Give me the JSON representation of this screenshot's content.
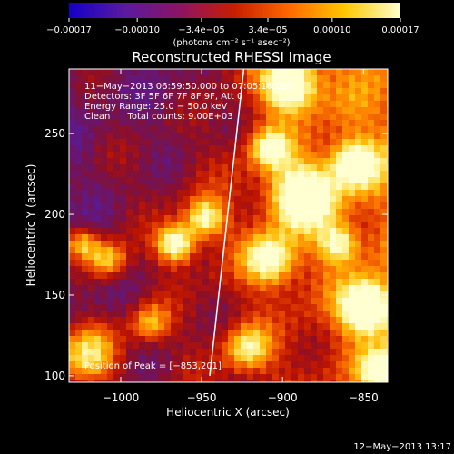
{
  "chart_data": {
    "type": "heatmap",
    "title": "Reconstructed RHESSI Image",
    "xlabel": "Heliocentric X (arcsec)",
    "ylabel": "Heliocentric Y (arcsec)",
    "xlim": [
      -1032,
      -835
    ],
    "ylim": [
      96,
      290
    ],
    "x_ticks": [
      {
        "value": -1000,
        "label": "−1000"
      },
      {
        "value": -950,
        "label": "−950"
      },
      {
        "value": -900,
        "label": "−900"
      },
      {
        "value": -850,
        "label": "−850"
      }
    ],
    "y_ticks": [
      {
        "value": 100,
        "label": "100"
      },
      {
        "value": 150,
        "label": "150"
      },
      {
        "value": 200,
        "label": "200"
      },
      {
        "value": 250,
        "label": "250"
      }
    ],
    "colorbar": {
      "range": [
        -0.00017,
        0.00017
      ],
      "ticks": [
        {
          "value": -0.00017,
          "label": "−0.00017"
        },
        {
          "value": -0.0001,
          "label": "−0.00010"
        },
        {
          "value": -3.4e-05,
          "label": "−3.4e−05"
        },
        {
          "value": 3.4e-05,
          "label": "3.4e−05"
        },
        {
          "value": 0.0001,
          "label": "0.00010"
        },
        {
          "value": 0.00017,
          "label": "0.00017"
        }
      ],
      "units_label": "(photons cm⁻² s⁻¹ asec⁻²)",
      "colors": [
        "#1400c8",
        "#5a1aa0",
        "#8c1464",
        "#c81e00",
        "#ff6a00",
        "#ffc800",
        "#ffffd0"
      ]
    },
    "annotations": [
      "11−May−2013 06:59:50.000 to 07:05:16.000",
      "Detectors: 3F 5F 6F 7F 8F 9F, Att 0",
      "Energy Range: 25.0 − 50.0 keV",
      "Clean      Total counts: 9.00E+03"
    ],
    "peak_label": "Position of Peak = [−853,201]",
    "limb_line": [
      {
        "x": -945,
        "y": 100
      },
      {
        "x": -924,
        "y": 290
      }
    ],
    "grid": false,
    "legend": "colorbar-top"
  },
  "footer": {
    "timestamp": "12−May−2013 13:17"
  }
}
